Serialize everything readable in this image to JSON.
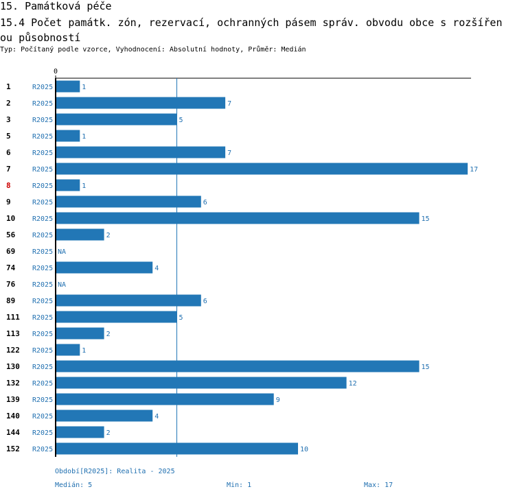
{
  "header": {
    "title": "15. Památková péče",
    "subtitle": "15.4 Počet památk. zón, rezervací, ochranných pásem správ. obvodu obce s rozšířen ou působností",
    "meta": "Typ: Počítaný podle vzorce, Vyhodnocení: Absolutní hodnoty, Průměr: Medián"
  },
  "footer": {
    "period": "Období[R2025]: Realita - 2025",
    "median": "Medián: 5",
    "min": "Min: 1",
    "max": "Max: 17"
  },
  "colors": {
    "bar": "#2277b6",
    "label": "#1f6fb0",
    "highlight": "#cc0000",
    "text": "#000000"
  },
  "chart_data": {
    "type": "bar",
    "orientation": "horizontal",
    "axis_tick": "0",
    "xlim": [
      0,
      17
    ],
    "median": 5,
    "series": "R2025",
    "highlight_category": "8",
    "categories": [
      "1",
      "2",
      "3",
      "5",
      "6",
      "7",
      "8",
      "9",
      "10",
      "56",
      "69",
      "74",
      "76",
      "89",
      "111",
      "113",
      "122",
      "130",
      "132",
      "139",
      "140",
      "144",
      "152"
    ],
    "values": [
      1,
      7,
      5,
      1,
      7,
      17,
      1,
      6,
      15,
      2,
      null,
      4,
      null,
      6,
      5,
      2,
      1,
      15,
      12,
      9,
      4,
      2,
      10
    ],
    "value_labels": [
      "1",
      "7",
      "5",
      "1",
      "7",
      "17",
      "1",
      "6",
      "15",
      "2",
      "NA",
      "4",
      "NA",
      "6",
      "5",
      "2",
      "1",
      "15",
      "12",
      "9",
      "4",
      "2",
      "10"
    ]
  }
}
